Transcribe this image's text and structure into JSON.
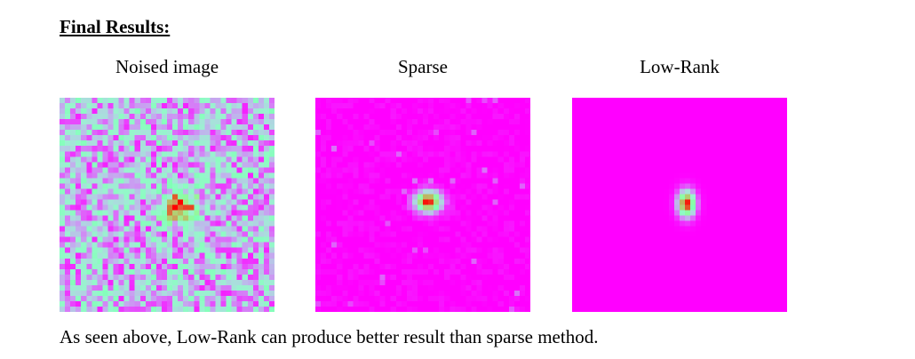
{
  "heading": "Final Results:",
  "panels": [
    {
      "title": "Noised image",
      "image_name": "noised-image",
      "background": "#4a6cf0",
      "noise": "strong"
    },
    {
      "title": "Sparse",
      "image_name": "sparse-reconstruction",
      "background": "#7f00ff",
      "noise": "faint"
    },
    {
      "title": "Low-Rank",
      "image_name": "low-rank-reconstruction",
      "background": "#7f00ff",
      "noise": "none"
    }
  ],
  "colors": {
    "colormap": "rainbow",
    "low": "#7f00ff",
    "peak": "#ff0000"
  },
  "caption": "As seen above, Low-Rank can produce better result than sparse method."
}
